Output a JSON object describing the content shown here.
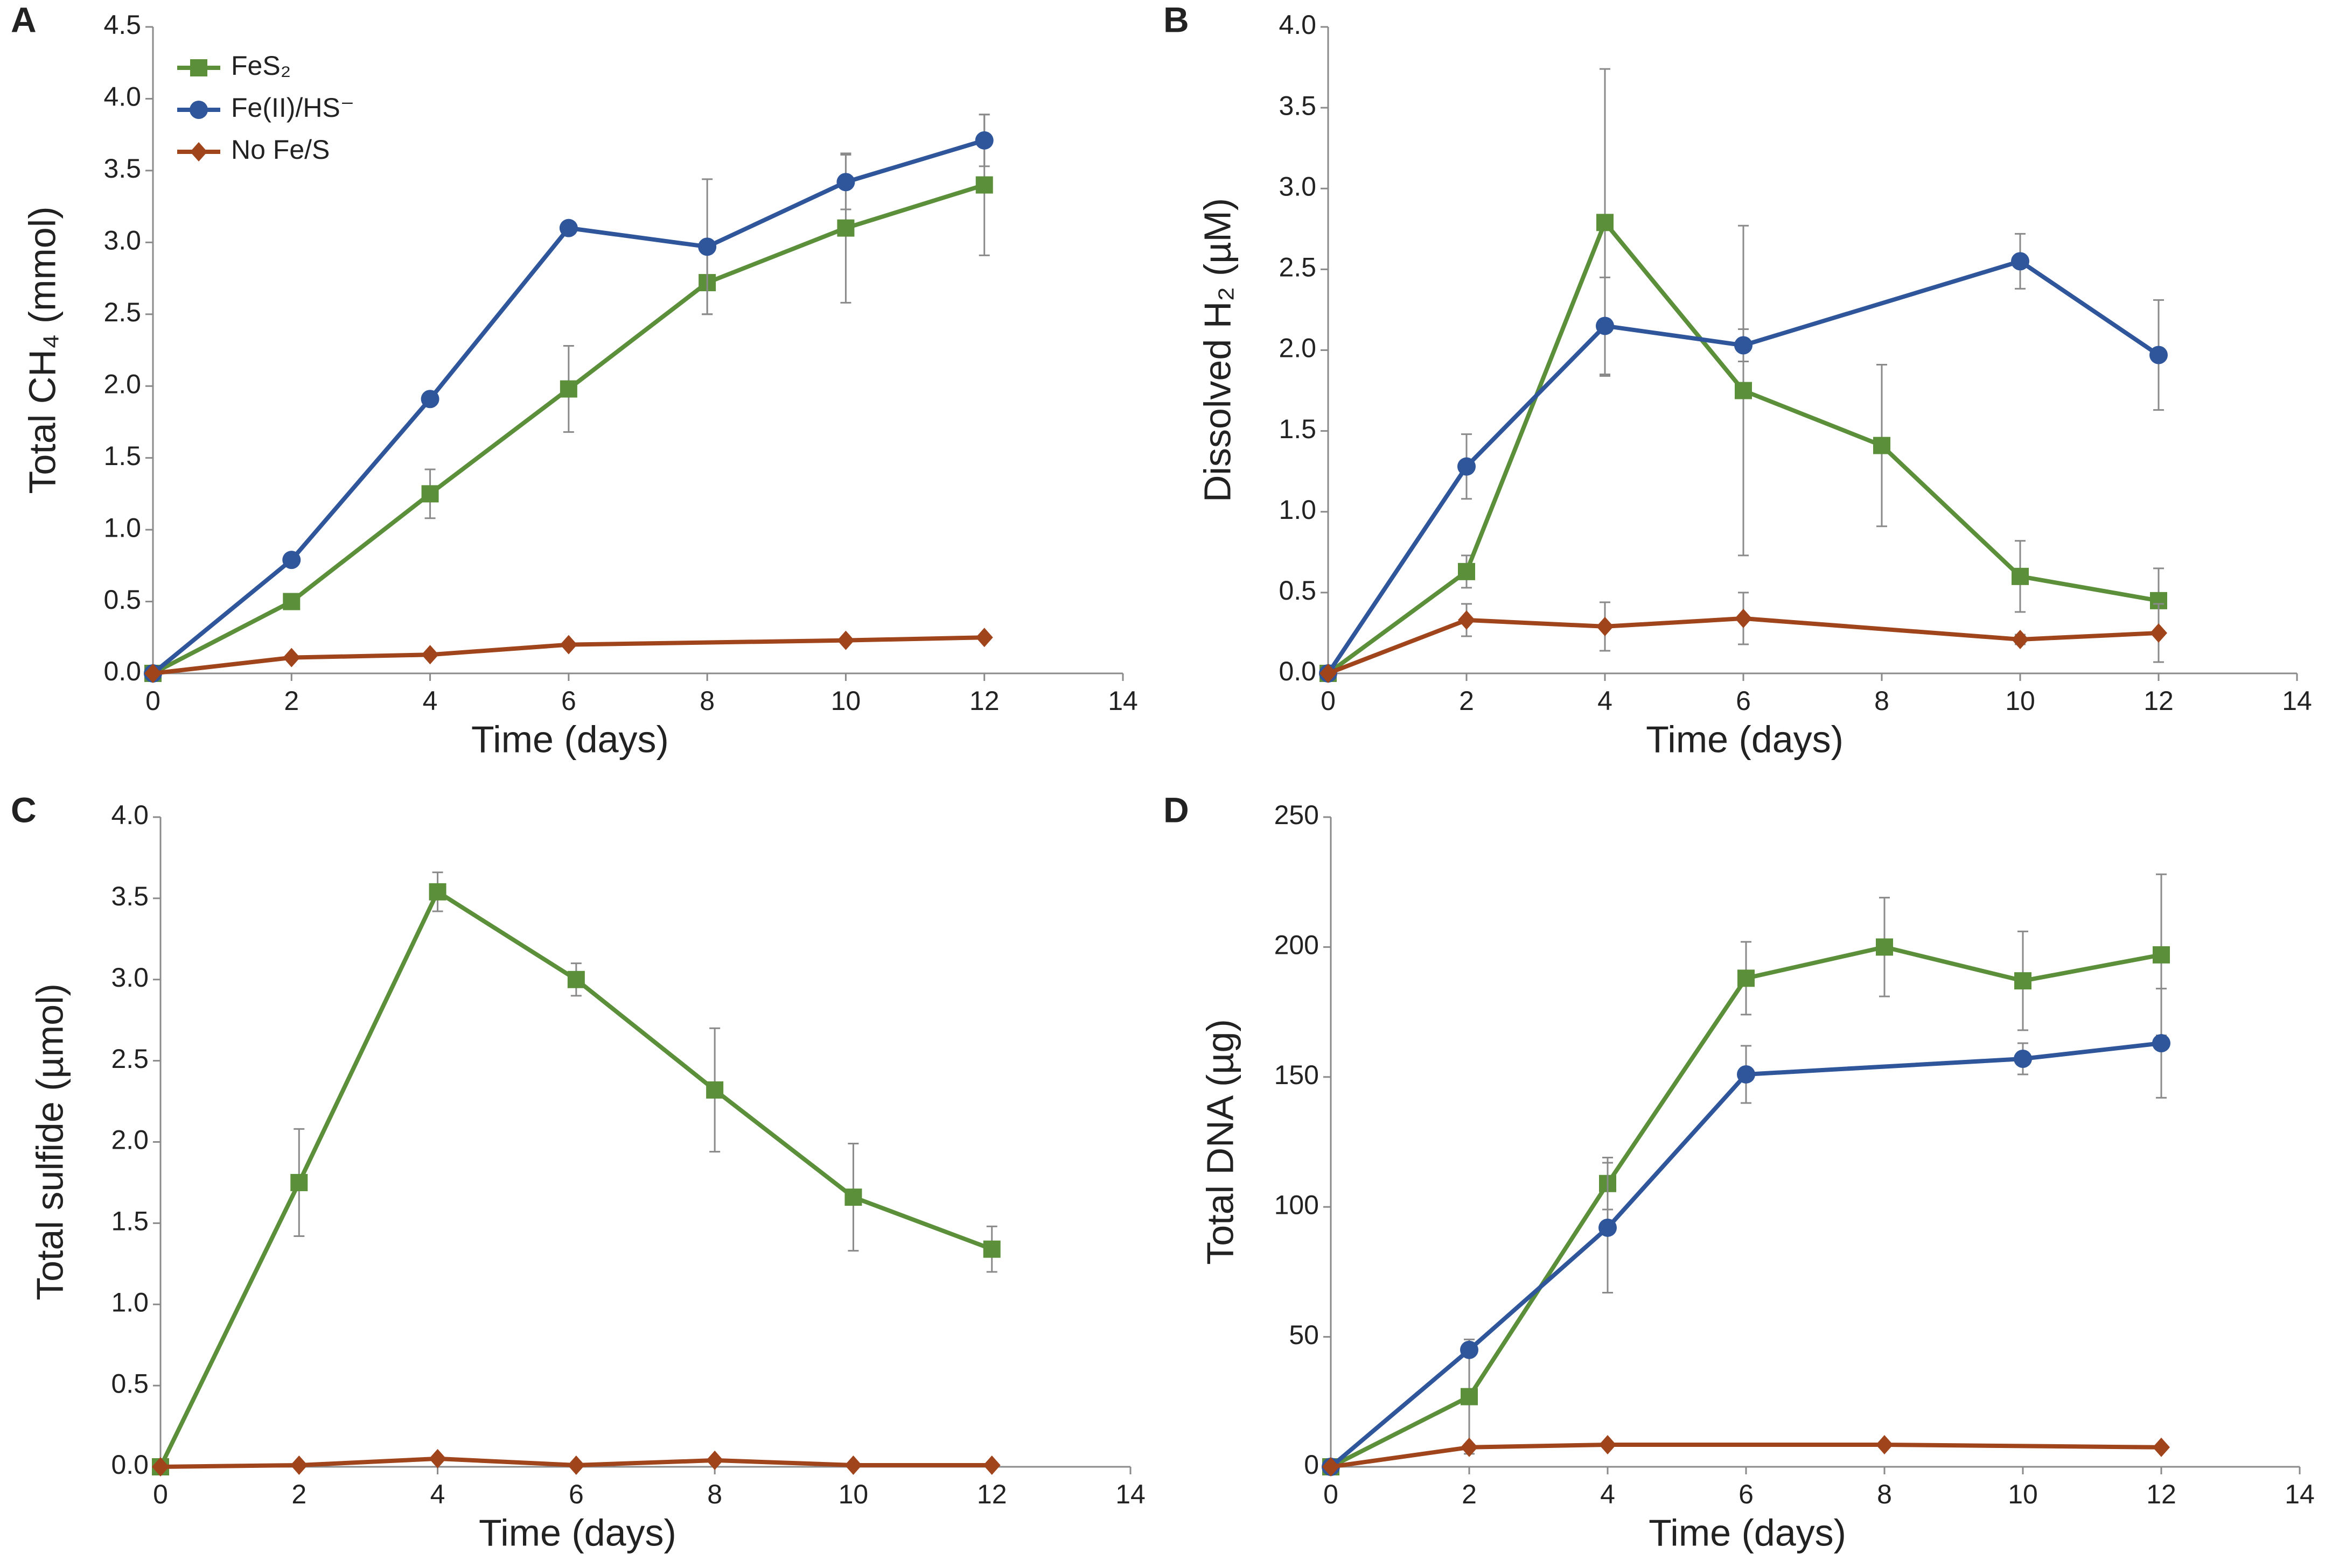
{
  "chart_data": [
    {
      "type": "line",
      "panel_label": "A",
      "xlabel": "Time (days)",
      "ylabel": "Total CH₄ (mmol)",
      "xlim": [
        0,
        14
      ],
      "xticks": [
        0,
        2,
        4,
        6,
        8,
        10,
        12,
        14
      ],
      "ylim": [
        0,
        4.5
      ],
      "yticks": [
        {
          "value": 0,
          "label": "0.0"
        },
        0.5,
        {
          "value": 1,
          "label": "1.0"
        },
        1.5,
        {
          "value": 2,
          "label": "2.0"
        },
        2.5,
        {
          "value": 3,
          "label": "3.0"
        },
        3.5,
        {
          "value": 4,
          "label": "4.0"
        },
        4.5
      ],
      "legend": "upper left",
      "series": [
        {
          "name": "FeS₂",
          "color": "#5b8f3a",
          "marker": "square",
          "x": [
            0,
            2,
            4,
            6,
            8,
            10,
            12
          ],
          "values": [
            0,
            0.5,
            1.25,
            1.98,
            2.72,
            3.1,
            3.4
          ],
          "errors": [
            0,
            0.03,
            0.17,
            0.3,
            0.22,
            0.52,
            0.49
          ]
        },
        {
          "name": "Fe(II)/HS⁻",
          "color": "#2f559a",
          "marker": "circle",
          "x": [
            0,
            2,
            4,
            6,
            8,
            10,
            12
          ],
          "values": [
            0,
            0.79,
            1.91,
            3.1,
            2.97,
            3.42,
            3.71
          ],
          "errors": [
            0,
            0.02,
            0.02,
            0.02,
            0.47,
            0.19,
            0.18
          ]
        },
        {
          "name": "No Fe/S",
          "color": "#a0441c",
          "marker": "diamond",
          "x": [
            0,
            2,
            4,
            6,
            10,
            12
          ],
          "values": [
            0,
            0.11,
            0.13,
            0.2,
            0.23,
            0.25
          ],
          "errors": [
            0,
            0.01,
            0.01,
            0.01,
            0.01,
            0.01
          ]
        }
      ]
    },
    {
      "type": "line",
      "panel_label": "B",
      "xlabel": "Time (days)",
      "ylabel": "Dissolved H₂ (µM)",
      "xlim": [
        0,
        14
      ],
      "xticks": [
        0,
        2,
        4,
        6,
        8,
        10,
        12,
        14
      ],
      "ylim": [
        0,
        4
      ],
      "yticks": [
        {
          "value": 0,
          "label": "0.0"
        },
        0.5,
        {
          "value": 1,
          "label": "1.0"
        },
        1.5,
        {
          "value": 2,
          "label": "2.0"
        },
        2.5,
        {
          "value": 3,
          "label": "3.0"
        },
        3.5,
        {
          "value": 4,
          "label": "4.0"
        }
      ],
      "series": [
        {
          "color": "#5b8f3a",
          "marker": "square",
          "x": [
            0,
            2,
            4,
            6,
            8,
            10,
            12
          ],
          "values": [
            0,
            0.63,
            2.79,
            1.75,
            1.41,
            0.6,
            0.45
          ],
          "errors": [
            0,
            0.1,
            0.95,
            1.02,
            0.5,
            0.22,
            0.2
          ]
        },
        {
          "color": "#2f559a",
          "marker": "circle",
          "x": [
            0,
            2,
            4,
            6,
            10,
            12
          ],
          "values": [
            0,
            1.28,
            2.15,
            2.03,
            2.55,
            1.97
          ],
          "errors": [
            0,
            0.2,
            0.3,
            0.1,
            0.17,
            0.34
          ]
        },
        {
          "color": "#a0441c",
          "marker": "diamond",
          "x": [
            0,
            2,
            4,
            6,
            10,
            12
          ],
          "values": [
            0,
            0.33,
            0.29,
            0.34,
            0.21,
            0.25
          ],
          "errors": [
            0,
            0.1,
            0.15,
            0.16,
            0.03,
            0.18
          ]
        }
      ]
    },
    {
      "type": "line",
      "panel_label": "C",
      "xlabel": "Time (days)",
      "ylabel": "Total sulfide (µmol)",
      "xlim": [
        0,
        14
      ],
      "xticks": [
        0,
        2,
        4,
        6,
        8,
        10,
        12,
        14
      ],
      "ylim": [
        0,
        4
      ],
      "yticks": [
        {
          "value": 0,
          "label": "0.0"
        },
        0.5,
        {
          "value": 1,
          "label": "1.0"
        },
        1.5,
        {
          "value": 2,
          "label": "2.0"
        },
        2.5,
        {
          "value": 3,
          "label": "3.0"
        },
        3.5,
        {
          "value": 4,
          "label": "4.0"
        }
      ],
      "series": [
        {
          "color": "#5b8f3a",
          "marker": "square",
          "x": [
            0,
            2,
            4,
            6,
            8,
            10,
            12
          ],
          "values": [
            0,
            1.75,
            3.54,
            3.0,
            2.32,
            1.66,
            1.34
          ],
          "errors": [
            0,
            0.33,
            0.12,
            0.1,
            0.38,
            0.33,
            0.14
          ]
        },
        {
          "color": "#a0441c",
          "marker": "diamond",
          "x": [
            0,
            2,
            4,
            6,
            8,
            10,
            12
          ],
          "values": [
            0,
            0.01,
            0.05,
            0.01,
            0.04,
            0.01,
            0.01
          ],
          "errors": [
            0,
            0,
            0,
            0,
            0,
            0,
            0
          ]
        }
      ]
    },
    {
      "type": "line",
      "panel_label": "D",
      "xlabel": "Time (days)",
      "ylabel": "Total DNA (µg)",
      "xlim": [
        0,
        14
      ],
      "xticks": [
        0,
        2,
        4,
        6,
        8,
        10,
        12,
        14
      ],
      "ylim": [
        0,
        250
      ],
      "yticks": [
        0,
        50,
        100,
        150,
        200,
        250
      ],
      "series": [
        {
          "color": "#5b8f3a",
          "marker": "square",
          "x": [
            0,
            2,
            4,
            6,
            8,
            10,
            12
          ],
          "values": [
            0,
            27,
            109,
            188,
            200,
            187,
            197
          ],
          "errors": [
            0,
            22,
            10,
            14,
            19,
            19,
            31
          ]
        },
        {
          "color": "#2f559a",
          "marker": "circle",
          "x": [
            0,
            2,
            4,
            6,
            10,
            12
          ],
          "values": [
            0,
            45,
            92,
            151,
            157,
            163
          ],
          "errors": [
            0,
            2,
            25,
            11,
            6,
            21
          ]
        },
        {
          "color": "#a0441c",
          "marker": "diamond",
          "x": [
            0,
            2,
            4,
            8,
            12
          ],
          "values": [
            0,
            7.5,
            8.5,
            8.5,
            7.5
          ],
          "errors": [
            0,
            0,
            0,
            0,
            0
          ]
        }
      ]
    }
  ]
}
